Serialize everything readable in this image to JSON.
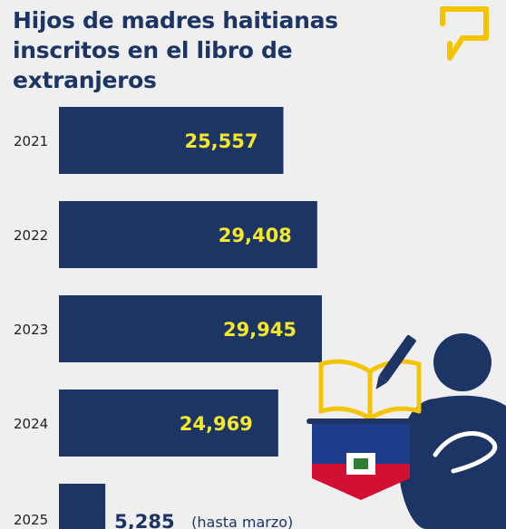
{
  "title_line1": "Hijos de madres haitianas",
  "title_line2": "inscritos en el libro de extranjeros",
  "logo_icon": "speech-bubble-icon",
  "illustration": "pregnant-woman-with-book-and-haiti-flag",
  "note": "(hasta marzo)",
  "colors": {
    "bar": "#1c3564",
    "value": "#f5e82a",
    "accent": "#f5c400",
    "flag_blue": "#1e3c8c",
    "flag_red": "#d21034"
  },
  "chart_data": {
    "type": "bar",
    "orientation": "horizontal",
    "categories": [
      "2021",
      "2022",
      "2023",
      "2024",
      "2025"
    ],
    "values": [
      25557,
      29408,
      29945,
      24969,
      5285
    ],
    "value_labels": [
      "25,557",
      "29,408",
      "29,945",
      "24,969",
      "5,285"
    ],
    "title": "Hijos de madres haitianas inscritos en el libro de extranjeros",
    "xlabel": "",
    "ylabel": ""
  }
}
